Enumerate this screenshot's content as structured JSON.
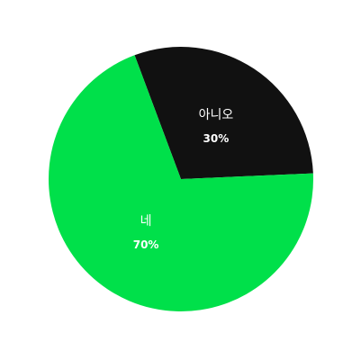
{
  "chart_data": {
    "type": "pie",
    "slices": [
      {
        "label": "아니오",
        "value": 30,
        "value_label": "30%",
        "color": "#111111"
      },
      {
        "label": "네",
        "value": 70,
        "value_label": "70%",
        "color": "#00e04a"
      }
    ],
    "legend": "none"
  }
}
